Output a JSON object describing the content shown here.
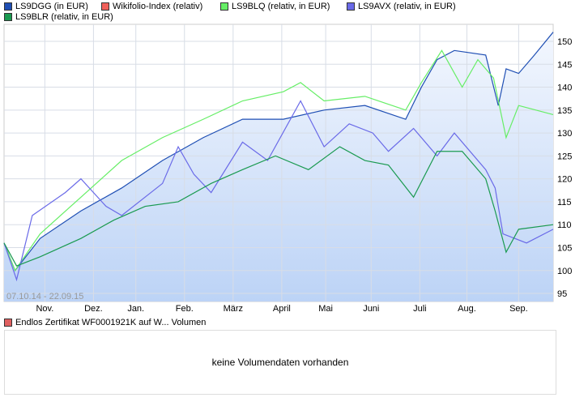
{
  "legend": [
    {
      "label": "LS9DGG (in EUR)",
      "color": "#1f4fb4"
    },
    {
      "label": "Wikifolio-Index (relativ)",
      "color": "#f0605a"
    },
    {
      "label": "LS9BLQ (relativ, in EUR)",
      "color": "#66ee66"
    },
    {
      "label": "LS9AVX (relativ, in EUR)",
      "color": "#6a6ae8"
    },
    {
      "label": "LS9BLR (relativ, in EUR)",
      "color": "#1a9a50"
    }
  ],
  "volume": {
    "legend": "Endlos Zertifikat WF0001921K auf W... Volumen",
    "color": "#e06060",
    "message": "keine Volumendaten vorhanden"
  },
  "chart_data": {
    "type": "line",
    "date_range": "07.10.14 - 22.09.15",
    "x_unit": "days since 07.10.14",
    "ylim": [
      93,
      154
    ],
    "yticks": [
      95,
      100,
      105,
      110,
      115,
      120,
      125,
      130,
      135,
      140,
      145,
      150
    ],
    "xticks": [
      {
        "label": "Nov.",
        "x": 26
      },
      {
        "label": "Dez.",
        "x": 57
      },
      {
        "label": "Jan.",
        "x": 84
      },
      {
        "label": "Feb.",
        "x": 115
      },
      {
        "label": "März",
        "x": 146
      },
      {
        "label": "April",
        "x": 177
      },
      {
        "label": "Mai",
        "x": 205
      },
      {
        "label": "Juni",
        "x": 234
      },
      {
        "label": "Juli",
        "x": 265
      },
      {
        "label": "Aug.",
        "x": 295
      },
      {
        "label": "Sep.",
        "x": 328
      }
    ],
    "series": [
      {
        "name": "LS9DGG (in EUR)",
        "color": "#1f4fb4",
        "fill": true,
        "points": [
          [
            0,
            106
          ],
          [
            7,
            100
          ],
          [
            23,
            107
          ],
          [
            49,
            113
          ],
          [
            75,
            118
          ],
          [
            101,
            124
          ],
          [
            127,
            129
          ],
          [
            152,
            133
          ],
          [
            178,
            133
          ],
          [
            204,
            135
          ],
          [
            230,
            136
          ],
          [
            256,
            133
          ],
          [
            266,
            140
          ],
          [
            276,
            146
          ],
          [
            287,
            148
          ],
          [
            307,
            147
          ],
          [
            315,
            136
          ],
          [
            320,
            144
          ],
          [
            328,
            143
          ],
          [
            338,
            147
          ],
          [
            350,
            152
          ]
        ]
      },
      {
        "name": "LS9BLQ (relativ, in EUR)",
        "color": "#66ee66",
        "points": [
          [
            0,
            106
          ],
          [
            7,
            100
          ],
          [
            23,
            108
          ],
          [
            49,
            116
          ],
          [
            75,
            124
          ],
          [
            101,
            129
          ],
          [
            127,
            133
          ],
          [
            152,
            137
          ],
          [
            178,
            139
          ],
          [
            189,
            141
          ],
          [
            204,
            137
          ],
          [
            230,
            138
          ],
          [
            256,
            135
          ],
          [
            266,
            141
          ],
          [
            279,
            148
          ],
          [
            292,
            140
          ],
          [
            302,
            146
          ],
          [
            312,
            142
          ],
          [
            320,
            129
          ],
          [
            328,
            136
          ],
          [
            350,
            134
          ]
        ]
      },
      {
        "name": "LS9AVX (relativ, in EUR)",
        "color": "#6a6ae8",
        "points": [
          [
            0,
            106
          ],
          [
            8,
            98
          ],
          [
            18,
            112
          ],
          [
            39,
            117
          ],
          [
            49,
            120
          ],
          [
            65,
            114
          ],
          [
            75,
            112
          ],
          [
            101,
            119
          ],
          [
            111,
            127
          ],
          [
            121,
            121
          ],
          [
            132,
            117
          ],
          [
            152,
            128
          ],
          [
            168,
            124
          ],
          [
            189,
            137
          ],
          [
            204,
            127
          ],
          [
            220,
            132
          ],
          [
            235,
            130
          ],
          [
            245,
            126
          ],
          [
            261,
            131
          ],
          [
            276,
            125
          ],
          [
            287,
            130
          ],
          [
            307,
            122
          ],
          [
            313,
            118
          ],
          [
            318,
            108
          ],
          [
            333,
            106
          ],
          [
            350,
            109
          ]
        ]
      },
      {
        "name": "LS9BLR (relativ, in EUR)",
        "color": "#1a9a50",
        "points": [
          [
            0,
            106
          ],
          [
            8,
            101
          ],
          [
            23,
            103
          ],
          [
            49,
            107
          ],
          [
            70,
            111
          ],
          [
            90,
            114
          ],
          [
            111,
            115
          ],
          [
            132,
            119
          ],
          [
            152,
            122
          ],
          [
            173,
            125
          ],
          [
            194,
            122
          ],
          [
            214,
            127
          ],
          [
            230,
            124
          ],
          [
            245,
            123
          ],
          [
            261,
            116
          ],
          [
            276,
            126
          ],
          [
            292,
            126
          ],
          [
            307,
            120
          ],
          [
            313,
            113
          ],
          [
            320,
            104
          ],
          [
            328,
            109
          ],
          [
            350,
            110
          ]
        ]
      }
    ]
  }
}
